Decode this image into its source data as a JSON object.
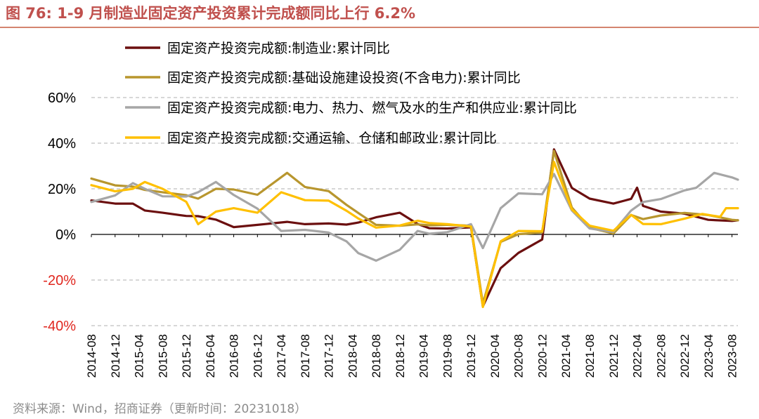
{
  "figure": {
    "title": "图 76:  1-9 月制造业固定资产投资累计完成额同比上行 6.2%",
    "source": "资料来源：Wind，招商证券（更新时间：20231018）"
  },
  "chart_data": {
    "type": "line",
    "title": "1-9 月制造业固定资产投资累计完成额同比上行 6.2%",
    "xlabel": "",
    "ylabel": "",
    "ylim": [
      -40,
      60
    ],
    "yticks": [
      -40,
      -20,
      0,
      20,
      40,
      60
    ],
    "ytick_labels": [
      "-40%",
      "-20%",
      "0%",
      "20%",
      "40%",
      "60%"
    ],
    "grid": "horizontal dashed",
    "legend_position": "top",
    "x_tick_labels": [
      "2014-08",
      "2014-12",
      "2015-04",
      "2015-08",
      "2015-12",
      "2016-04",
      "2016-08",
      "2016-12",
      "2017-04",
      "2017-08",
      "2017-12",
      "2018-04",
      "2018-08",
      "2018-12",
      "2019-04",
      "2019-08",
      "2019-12",
      "2020-04",
      "2020-08",
      "2020-12",
      "2021-04",
      "2021-08",
      "2021-12",
      "2022-04",
      "2022-08",
      "2022-12",
      "2023-04",
      "2023-08"
    ],
    "series": [
      {
        "name": "固定资产投资完成额:制造业:累计同比",
        "color": "#6b0f0f",
        "points": [
          [
            "2014-08",
            14.9
          ],
          [
            "2014-12",
            13.5
          ],
          [
            "2015-03",
            13.5
          ],
          [
            "2015-05",
            10.5
          ],
          [
            "2015-08",
            9.5
          ],
          [
            "2015-12",
            8.1
          ],
          [
            "2016-02",
            8.0
          ],
          [
            "2016-05",
            6.5
          ],
          [
            "2016-08",
            3.2
          ],
          [
            "2016-12",
            4.2
          ],
          [
            "2017-05",
            5.5
          ],
          [
            "2017-08",
            4.5
          ],
          [
            "2017-12",
            4.8
          ],
          [
            "2018-03",
            4.3
          ],
          [
            "2018-05",
            5.2
          ],
          [
            "2018-08",
            7.5
          ],
          [
            "2018-12",
            9.5
          ],
          [
            "2019-03",
            4.6
          ],
          [
            "2019-05",
            2.7
          ],
          [
            "2019-08",
            2.6
          ],
          [
            "2019-12",
            3.1
          ],
          [
            "2020-02",
            -31.5
          ],
          [
            "2020-05",
            -14.8
          ],
          [
            "2020-08",
            -8.1
          ],
          [
            "2020-12",
            -2.2
          ],
          [
            "2021-02",
            37.3
          ],
          [
            "2021-05",
            20.4
          ],
          [
            "2021-08",
            15.7
          ],
          [
            "2021-12",
            13.5
          ],
          [
            "2022-03",
            15.6
          ],
          [
            "2022-04",
            20.5
          ],
          [
            "2022-05",
            12.5
          ],
          [
            "2022-08",
            10.0
          ],
          [
            "2022-12",
            9.1
          ],
          [
            "2023-04",
            6.4
          ],
          [
            "2023-08",
            5.9
          ],
          [
            "2023-09",
            6.2
          ]
        ]
      },
      {
        "name": "固定资产投资完成额:基础设施建设投资(不含电力):累计同比",
        "color": "#b8962e",
        "points": [
          [
            "2014-08",
            24.5
          ],
          [
            "2014-12",
            21.5
          ],
          [
            "2015-03",
            21.0
          ],
          [
            "2015-05",
            19.5
          ],
          [
            "2015-08",
            18.5
          ],
          [
            "2015-12",
            17.2
          ],
          [
            "2016-02",
            15.7
          ],
          [
            "2016-05",
            20.0
          ],
          [
            "2016-08",
            19.7
          ],
          [
            "2016-12",
            17.4
          ],
          [
            "2017-05",
            27.0
          ],
          [
            "2017-08",
            20.8
          ],
          [
            "2017-12",
            19.0
          ],
          [
            "2018-03",
            13.0
          ],
          [
            "2018-05",
            9.4
          ],
          [
            "2018-08",
            4.2
          ],
          [
            "2018-12",
            3.8
          ],
          [
            "2019-03",
            4.4
          ],
          [
            "2019-05",
            4.0
          ],
          [
            "2019-08",
            4.2
          ],
          [
            "2019-12",
            3.8
          ],
          [
            "2020-02",
            -30.3
          ],
          [
            "2020-05",
            -3.3
          ],
          [
            "2020-08",
            0.1
          ],
          [
            "2020-12",
            0.9
          ],
          [
            "2021-02",
            36.6
          ],
          [
            "2021-05",
            11.8
          ],
          [
            "2021-08",
            2.9
          ],
          [
            "2021-12",
            0.4
          ],
          [
            "2022-03",
            8.5
          ],
          [
            "2022-05",
            6.7
          ],
          [
            "2022-08",
            8.3
          ],
          [
            "2022-12",
            9.4
          ],
          [
            "2023-04",
            8.5
          ],
          [
            "2023-08",
            6.4
          ],
          [
            "2023-09",
            6.2
          ]
        ]
      },
      {
        "name": "固定资产投资完成额:电力、热力、燃气及水的生产和供应业:累计同比",
        "color": "#a6a6a6",
        "points": [
          [
            "2014-08",
            14.2
          ],
          [
            "2014-12",
            17.1
          ],
          [
            "2015-03",
            22.5
          ],
          [
            "2015-05",
            20.0
          ],
          [
            "2015-08",
            16.7
          ],
          [
            "2015-12",
            16.6
          ],
          [
            "2016-02",
            18.5
          ],
          [
            "2016-05",
            23.0
          ],
          [
            "2016-08",
            17.3
          ],
          [
            "2016-12",
            11.3
          ],
          [
            "2017-04",
            1.5
          ],
          [
            "2017-08",
            2.0
          ],
          [
            "2017-12",
            0.8
          ],
          [
            "2018-03",
            -3.0
          ],
          [
            "2018-05",
            -8.2
          ],
          [
            "2018-08",
            -11.5
          ],
          [
            "2018-12",
            -6.7
          ],
          [
            "2019-03",
            1.5
          ],
          [
            "2019-05",
            0.3
          ],
          [
            "2019-08",
            1.0
          ],
          [
            "2019-12",
            4.5
          ],
          [
            "2020-02",
            -6.0
          ],
          [
            "2020-05",
            11.5
          ],
          [
            "2020-08",
            18.0
          ],
          [
            "2020-12",
            17.6
          ],
          [
            "2021-02",
            26.5
          ],
          [
            "2021-05",
            10.5
          ],
          [
            "2021-08",
            2.6
          ],
          [
            "2021-12",
            1.1
          ],
          [
            "2022-03",
            10.5
          ],
          [
            "2022-05",
            14.2
          ],
          [
            "2022-08",
            15.5
          ],
          [
            "2022-12",
            19.3
          ],
          [
            "2023-02",
            20.5
          ],
          [
            "2023-05",
            27.0
          ],
          [
            "2023-08",
            25.0
          ],
          [
            "2023-09",
            24.0
          ]
        ]
      },
      {
        "name": "固定资产投资完成额:交通运输、仓储和邮政业:累计同比",
        "color": "#ffc000",
        "points": [
          [
            "2014-08",
            21.6
          ],
          [
            "2014-12",
            18.9
          ],
          [
            "2015-03",
            20.0
          ],
          [
            "2015-05",
            23.0
          ],
          [
            "2015-08",
            20.0
          ],
          [
            "2015-12",
            14.3
          ],
          [
            "2016-02",
            4.5
          ],
          [
            "2016-05",
            10.0
          ],
          [
            "2016-08",
            11.5
          ],
          [
            "2016-12",
            9.5
          ],
          [
            "2017-04",
            18.5
          ],
          [
            "2017-08",
            15.0
          ],
          [
            "2017-12",
            14.8
          ],
          [
            "2018-03",
            10.4
          ],
          [
            "2018-05",
            7.0
          ],
          [
            "2018-08",
            3.0
          ],
          [
            "2018-12",
            3.9
          ],
          [
            "2019-03",
            6.0
          ],
          [
            "2019-05",
            5.0
          ],
          [
            "2019-08",
            4.5
          ],
          [
            "2019-12",
            3.4
          ],
          [
            "2020-02",
            -31.8
          ],
          [
            "2020-05",
            -3.0
          ],
          [
            "2020-08",
            1.5
          ],
          [
            "2020-12",
            1.4
          ],
          [
            "2021-02",
            31.8
          ],
          [
            "2021-05",
            11.0
          ],
          [
            "2021-08",
            3.8
          ],
          [
            "2021-12",
            1.6
          ],
          [
            "2022-03",
            8.6
          ],
          [
            "2022-05",
            4.6
          ],
          [
            "2022-08",
            4.5
          ],
          [
            "2022-12",
            6.9
          ],
          [
            "2023-03",
            9.0
          ],
          [
            "2023-06",
            7.7
          ],
          [
            "2023-07",
            11.5
          ],
          [
            "2023-09",
            11.5
          ]
        ]
      }
    ]
  }
}
